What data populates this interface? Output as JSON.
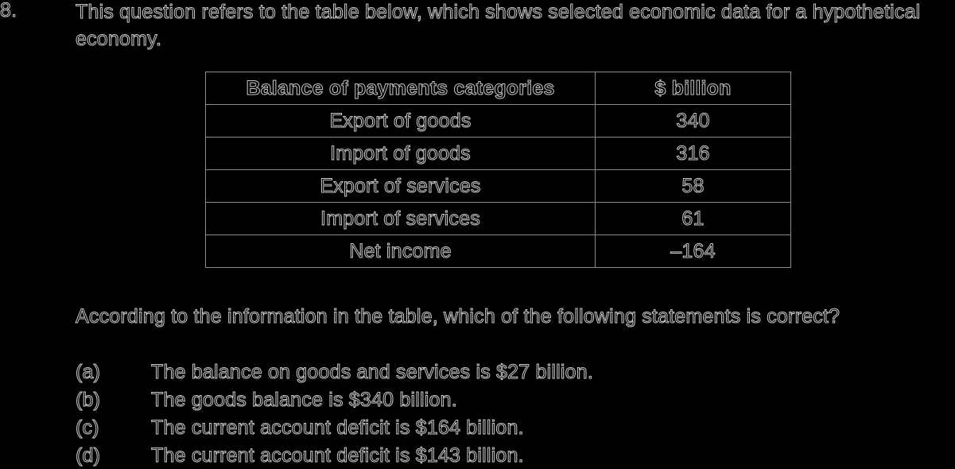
{
  "question": {
    "number": "8.",
    "stem": "This question refers to the table below, which shows selected economic data for a hypothetical economy."
  },
  "table": {
    "headers": [
      "Balance of payments categories",
      "$ billion"
    ],
    "rows": [
      [
        "Export of goods",
        "340"
      ],
      [
        "Import of goods",
        "316"
      ],
      [
        "Export of services",
        "58"
      ],
      [
        "Import of services",
        "61"
      ],
      [
        "Net income",
        "–164"
      ]
    ]
  },
  "prompt": "According to the information in the table, which of the following statements is correct?",
  "options": [
    {
      "letter": "(a)",
      "text": "The balance on goods and services is $27 billion."
    },
    {
      "letter": "(b)",
      "text": "The goods balance is $340 billion."
    },
    {
      "letter": "(c)",
      "text": "The current account deficit is $164 billion."
    },
    {
      "letter": "(d)",
      "text": "The current account deficit is $143 billion."
    }
  ]
}
